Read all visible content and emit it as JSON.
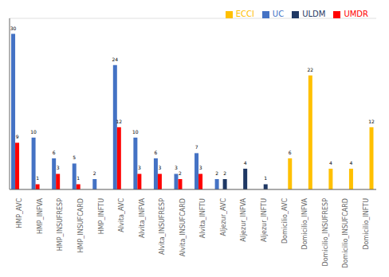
{
  "chart_data": {
    "type": "bar",
    "categories": [
      "HMP_AVC",
      "HMP_INFVA",
      "HMP_INSUFRESP",
      "HMP_INSUFCARD",
      "HMP_INFTU",
      "Alvita_AVC",
      "Alvita_INFVA",
      "Alvita_INSUFRESP",
      "Alvita_INSUFCARD",
      "Alvita_INFTU",
      "Aljezur_AVC",
      "Aljezur_INFVA",
      "Aljezur_INFTU",
      "Domicilio_AVC",
      "Domicilio_INFVA",
      "Domicilio_INSUFRESP",
      "Domicilio_INSUFCARD",
      "Domicilio_INFTU"
    ],
    "series": [
      {
        "name": "UC",
        "color": "#4472C4",
        "values": [
          30,
          10,
          6,
          5,
          2,
          24,
          10,
          6,
          3,
          7,
          2,
          0,
          0,
          0,
          0,
          0,
          0,
          0
        ]
      },
      {
        "name": "UMDR",
        "color": "#FF0000",
        "values": [
          9,
          1,
          3,
          1,
          0,
          12,
          3,
          3,
          2,
          3,
          0,
          0,
          0,
          0,
          0,
          0,
          0,
          0
        ]
      },
      {
        "name": "ULDM",
        "color": "#1F3864",
        "values": [
          0,
          0,
          0,
          0,
          0,
          0,
          0,
          0,
          0,
          0,
          2,
          4,
          1,
          0,
          0,
          0,
          0,
          0
        ]
      },
      {
        "name": "ECCI",
        "color": "#FFC000",
        "values": [
          0,
          0,
          0,
          0,
          0,
          0,
          0,
          0,
          0,
          0,
          0,
          0,
          0,
          6,
          22,
          4,
          4,
          12
        ]
      }
    ],
    "ylim": [
      0,
      33
    ],
    "yticks": [
      5,
      10,
      15,
      20,
      25,
      30
    ],
    "grid": true,
    "legend": "upper right",
    "data_labels": true,
    "tick_labels": "x"
  }
}
